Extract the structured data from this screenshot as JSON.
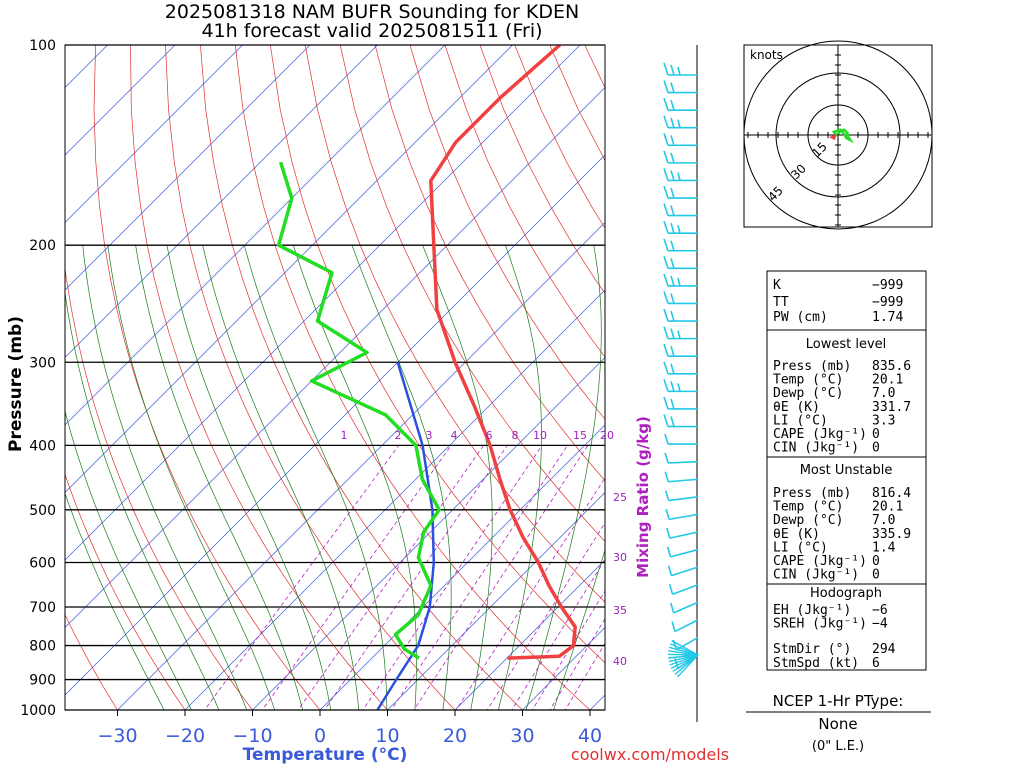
{
  "title_line1": "2025081318 NAM BUFR Sounding for KDEN",
  "title_line2": "41h forecast valid 2025081511 (Fri)",
  "credit": "coolwx.com/models",
  "chart_data": {
    "type": "skew-t",
    "xlabel": "Temperature (°C)",
    "ylabel": "Pressure (mb)",
    "mixing_ratio_label": "Mixing Ratio (g/kg)",
    "x_ticks": [
      "−30",
      "−20",
      "−10",
      "0",
      "10",
      "20",
      "30",
      "40"
    ],
    "x_tick_values": [
      -30,
      -20,
      -10,
      0,
      10,
      20,
      30,
      40
    ],
    "y_ticks": [
      "100",
      "200",
      "300",
      "400",
      "500",
      "600",
      "700",
      "800",
      "900",
      "1000"
    ],
    "y_tick_values": [
      100,
      200,
      300,
      400,
      500,
      600,
      700,
      800,
      900,
      1000
    ],
    "mixing_ratio_ticks": [
      "1",
      "2",
      "3",
      "4",
      "6",
      "8",
      "10",
      "15",
      "20",
      "25",
      "30",
      "35",
      "40"
    ],
    "temperature_profile": [
      {
        "p": 835.6,
        "t": 20.1
      },
      {
        "p": 830,
        "t": 27.5
      },
      {
        "p": 800,
        "t": 28.0
      },
      {
        "p": 750,
        "t": 25.5
      },
      {
        "p": 700,
        "t": 20.5
      },
      {
        "p": 650,
        "t": 15.5
      },
      {
        "p": 600,
        "t": 10.5
      },
      {
        "p": 550,
        "t": 4.5
      },
      {
        "p": 500,
        "t": -1.5
      },
      {
        "p": 450,
        "t": -7.5
      },
      {
        "p": 400,
        "t": -14.0
      },
      {
        "p": 350,
        "t": -22.0
      },
      {
        "p": 300,
        "t": -31.5
      },
      {
        "p": 250,
        "t": -42.0
      },
      {
        "p": 200,
        "t": -52.0
      },
      {
        "p": 160,
        "t": -62.0
      },
      {
        "p": 140,
        "t": -64.0
      },
      {
        "p": 120,
        "t": -64.0
      },
      {
        "p": 100,
        "t": -63.0
      }
    ],
    "dewpoint_profile": [
      {
        "p": 835.6,
        "t": 7.0
      },
      {
        "p": 810,
        "t": 3.5
      },
      {
        "p": 770,
        "t": 0.0
      },
      {
        "p": 720,
        "t": 0.5
      },
      {
        "p": 650,
        "t": -2.0
      },
      {
        "p": 590,
        "t": -8.0
      },
      {
        "p": 540,
        "t": -11.0
      },
      {
        "p": 500,
        "t": -12.0
      },
      {
        "p": 450,
        "t": -19.0
      },
      {
        "p": 400,
        "t": -25.0
      },
      {
        "p": 360,
        "t": -34.0
      },
      {
        "p": 320,
        "t": -50.0
      },
      {
        "p": 290,
        "t": -46.0
      },
      {
        "p": 260,
        "t": -58.0
      },
      {
        "p": 220,
        "t": -63.0
      },
      {
        "p": 200,
        "t": -75.0
      },
      {
        "p": 170,
        "t": -80.0
      },
      {
        "p": 150,
        "t": -87.0
      }
    ],
    "parcel_path": [
      {
        "p": 1000,
        "t": 8.5
      },
      {
        "p": 900,
        "t": 6.8
      },
      {
        "p": 800,
        "t": 5.0
      },
      {
        "p": 700,
        "t": 1.0
      },
      {
        "p": 600,
        "t": -5.0
      },
      {
        "p": 500,
        "t": -13.0
      },
      {
        "p": 400,
        "t": -24.0
      },
      {
        "p": 300,
        "t": -40.0
      }
    ],
    "wind_barbs_count": 34
  },
  "hodograph": {
    "units": "knots",
    "ring_labels": [
      "15",
      "30",
      "45"
    ],
    "trace": [
      [
        0.0,
        0.5
      ],
      [
        1.0,
        2.0
      ],
      [
        3.0,
        2.5
      ],
      [
        4.5,
        1.0
      ],
      [
        5.0,
        -1.0
      ],
      [
        6.0,
        -2.5
      ],
      [
        4.0,
        -1.5
      ],
      [
        3.0,
        0.5
      ],
      [
        1.0,
        2.5
      ],
      [
        -2.0,
        1.5
      ],
      [
        -0.5,
        -0.5
      ]
    ],
    "storm_motion": [
      -2.5,
      -1.0
    ]
  },
  "panel": {
    "k_label": "K",
    "k_val": "−999",
    "tt_label": "TT",
    "tt_val": "−999",
    "pw_label": "PW (cm)",
    "pw_val": "1.74",
    "lowest_head": "Lowest level",
    "lowest": [
      {
        "label": "Press (mb)",
        "value": "835.6"
      },
      {
        "label": "Temp (°C)",
        "value": "20.1"
      },
      {
        "label": "Dewp (°C)",
        "value": "7.0"
      },
      {
        "label": "θE (K)",
        "value": "331.7"
      },
      {
        "label": "LI (°C)",
        "value": "3.3"
      },
      {
        "label": "CAPE (Jkg⁻¹)",
        "value": "0"
      },
      {
        "label": "CIN (Jkg⁻¹)",
        "value": "0"
      }
    ],
    "mu_head": "Most Unstable",
    "mu": [
      {
        "label": "Press (mb)",
        "value": "816.4"
      },
      {
        "label": "Temp (°C)",
        "value": "20.1"
      },
      {
        "label": "Dewp (°C)",
        "value": "7.0"
      },
      {
        "label": "θE (K)",
        "value": "335.9"
      },
      {
        "label": "LI (°C)",
        "value": "1.4"
      },
      {
        "label": "CAPE (Jkg⁻¹)",
        "value": "0"
      },
      {
        "label": "CIN (Jkg⁻¹)",
        "value": "0"
      }
    ],
    "hodo_head": "Hodograph",
    "hodo": [
      {
        "label": "EH (Jkg⁻¹)",
        "value": "−6"
      },
      {
        "label": "SREH (Jkg⁻¹)",
        "value": "−4"
      },
      {
        "label": "StmDir (°)",
        "value": "294"
      },
      {
        "label": "StmSpd (kt)",
        "value": "6"
      }
    ]
  },
  "ptype": {
    "title": "NCEP 1-Hr PType:",
    "value": "None",
    "note": "(0\" L.E.)"
  },
  "colors": {
    "temperature": "#f04040",
    "dewpoint": "#22dd22",
    "parcel": "#2b4fe0",
    "isotherm": "#3a5bd8",
    "dry_adiabat": "#e03030",
    "moist_adiabat": "#1a7a1a",
    "mixing_ratio": "#b020c0",
    "barbs": "#22c8e8"
  }
}
